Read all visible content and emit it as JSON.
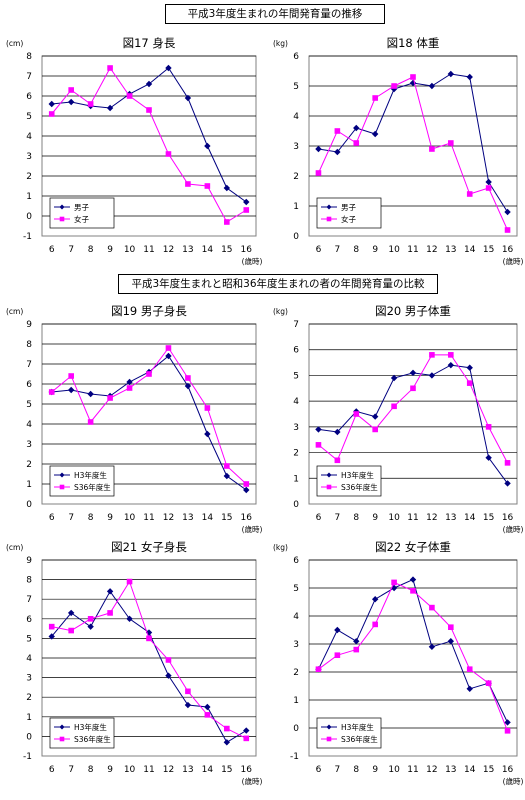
{
  "headers": {
    "top": "平成3年度生まれの年間発育量の推移",
    "middle": "平成3年度生まれと昭和36年度生まれの者の年間発育量の比較"
  },
  "colors": {
    "series1": "#000080",
    "series2": "#ff00ff"
  },
  "chart_data": [
    {
      "type": "line",
      "title": "図17 身長",
      "unit": "(cm)",
      "xunit": "(歳時)",
      "categories": [
        "6",
        "7",
        "8",
        "9",
        "10",
        "11",
        "12",
        "13",
        "14",
        "15",
        "16"
      ],
      "ylim": [
        -1,
        8
      ],
      "yticks": [
        -1,
        0,
        1,
        2,
        3,
        4,
        5,
        6,
        7,
        8
      ],
      "grid": true,
      "legend": "bottom-left",
      "series": [
        {
          "name": "男子",
          "color": "#000080",
          "marker": "diamond",
          "values": [
            5.6,
            5.7,
            5.5,
            5.4,
            6.1,
            6.6,
            7.4,
            5.9,
            3.5,
            1.4,
            0.7
          ]
        },
        {
          "name": "女子",
          "color": "#ff00ff",
          "marker": "square",
          "values": [
            5.1,
            6.3,
            5.6,
            7.4,
            6.0,
            5.3,
            3.1,
            1.6,
            1.5,
            -0.3,
            0.3
          ]
        }
      ]
    },
    {
      "type": "line",
      "title": "図18 体重",
      "unit": "(kg)",
      "xunit": "(歳時)",
      "categories": [
        "6",
        "7",
        "8",
        "9",
        "10",
        "11",
        "12",
        "13",
        "14",
        "15",
        "16"
      ],
      "ylim": [
        0,
        6
      ],
      "yticks": [
        0,
        1,
        2,
        3,
        4,
        5,
        6
      ],
      "grid": true,
      "legend": "bottom-left",
      "series": [
        {
          "name": "男子",
          "color": "#000080",
          "marker": "diamond",
          "values": [
            2.9,
            2.8,
            3.6,
            3.4,
            4.9,
            5.1,
            5.0,
            5.4,
            5.3,
            1.8,
            0.8
          ]
        },
        {
          "name": "女子",
          "color": "#ff00ff",
          "marker": "square",
          "values": [
            2.1,
            3.5,
            3.1,
            4.6,
            5.0,
            5.3,
            2.9,
            3.1,
            1.4,
            1.6,
            0.2
          ]
        }
      ]
    },
    {
      "type": "line",
      "title": "図19 男子身長",
      "unit": "(cm)",
      "xunit": "(歳時)",
      "categories": [
        "6",
        "7",
        "8",
        "9",
        "10",
        "11",
        "12",
        "13",
        "14",
        "15",
        "16"
      ],
      "ylim": [
        0,
        9
      ],
      "yticks": [
        0,
        1,
        2,
        3,
        4,
        5,
        6,
        7,
        8,
        9
      ],
      "grid": true,
      "legend": "bottom-left",
      "series": [
        {
          "name": "H3年度生",
          "color": "#000080",
          "marker": "diamond",
          "values": [
            5.6,
            5.7,
            5.5,
            5.4,
            6.1,
            6.6,
            7.4,
            5.9,
            3.5,
            1.4,
            0.7
          ]
        },
        {
          "name": "S36年度生",
          "color": "#ff00ff",
          "marker": "square",
          "values": [
            5.6,
            6.4,
            4.1,
            5.3,
            5.8,
            6.5,
            7.8,
            6.3,
            4.8,
            1.9,
            1.0
          ]
        }
      ]
    },
    {
      "type": "line",
      "title": "図20 男子体重",
      "unit": "(kg)",
      "xunit": "(歳時)",
      "categories": [
        "6",
        "7",
        "8",
        "9",
        "10",
        "11",
        "12",
        "13",
        "14",
        "15",
        "16"
      ],
      "ylim": [
        0,
        7
      ],
      "yticks": [
        0,
        1,
        2,
        3,
        4,
        5,
        6,
        7
      ],
      "grid": true,
      "legend": "bottom-left",
      "series": [
        {
          "name": "H3年度生",
          "color": "#000080",
          "marker": "diamond",
          "values": [
            2.9,
            2.8,
            3.6,
            3.4,
            4.9,
            5.1,
            5.0,
            5.4,
            5.3,
            1.8,
            0.8
          ]
        },
        {
          "name": "S36年度生",
          "color": "#ff00ff",
          "marker": "square",
          "values": [
            2.3,
            1.7,
            3.5,
            2.9,
            3.8,
            4.5,
            5.8,
            5.8,
            4.7,
            3.0,
            1.6
          ]
        }
      ]
    },
    {
      "type": "line",
      "title": "図21 女子身長",
      "unit": "(cm)",
      "xunit": "(歳時)",
      "categories": [
        "6",
        "7",
        "8",
        "9",
        "10",
        "11",
        "12",
        "13",
        "14",
        "15",
        "16"
      ],
      "ylim": [
        -1,
        9
      ],
      "yticks": [
        -1,
        0,
        1,
        2,
        3,
        4,
        5,
        6,
        7,
        8,
        9
      ],
      "grid": true,
      "legend": "bottom-left",
      "series": [
        {
          "name": "H3年度生",
          "color": "#000080",
          "marker": "diamond",
          "values": [
            5.1,
            6.3,
            5.6,
            7.4,
            6.0,
            5.3,
            3.1,
            1.6,
            1.5,
            -0.3,
            0.3
          ]
        },
        {
          "name": "S36年度生",
          "color": "#ff00ff",
          "marker": "square",
          "values": [
            5.6,
            5.4,
            6.0,
            6.3,
            7.9,
            5.0,
            3.9,
            2.3,
            1.1,
            0.4,
            -0.1
          ]
        }
      ]
    },
    {
      "type": "line",
      "title": "図22 女子体重",
      "unit": "(kg)",
      "xunit": "(歳時)",
      "categories": [
        "6",
        "7",
        "8",
        "9",
        "10",
        "11",
        "12",
        "13",
        "14",
        "15",
        "16"
      ],
      "ylim": [
        -1,
        6
      ],
      "yticks": [
        -1,
        0,
        1,
        2,
        3,
        4,
        5,
        6
      ],
      "grid": true,
      "legend": "bottom-left",
      "series": [
        {
          "name": "H3年度生",
          "color": "#000080",
          "marker": "diamond",
          "values": [
            2.1,
            3.5,
            3.1,
            4.6,
            5.0,
            5.3,
            2.9,
            3.1,
            1.4,
            1.6,
            0.2
          ]
        },
        {
          "name": "S36年度生",
          "color": "#ff00ff",
          "marker": "square",
          "values": [
            2.1,
            2.6,
            2.8,
            3.7,
            5.2,
            4.9,
            4.3,
            3.6,
            2.1,
            1.6,
            -0.1
          ]
        }
      ]
    }
  ]
}
